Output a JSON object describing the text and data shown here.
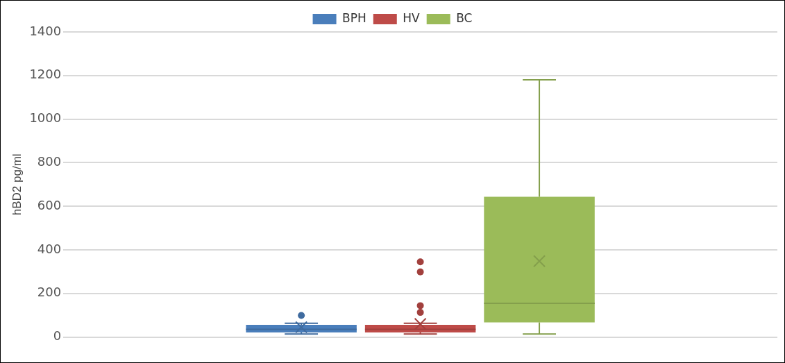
{
  "chart_data": {
    "type": "box",
    "ylabel": "hBD2 pg/ml",
    "categories": [
      null
    ],
    "ylim": [
      0,
      1400
    ],
    "yticks": [
      0,
      200,
      400,
      600,
      800,
      1000,
      1200,
      1400
    ],
    "grid": "y",
    "legend": "top",
    "series": [
      {
        "name": "BPH",
        "color": "#4a7ebb",
        "boxes": [
          {
            "low": 14,
            "q1": 21,
            "median": 35,
            "q3": 56,
            "high": 63,
            "mean": 45,
            "outliers": [
              99
            ]
          }
        ]
      },
      {
        "name": "HV",
        "color": "#be4b48",
        "boxes": [
          {
            "low": 14,
            "q1": 21,
            "median": 35,
            "q3": 56,
            "high": 63,
            "mean": 60,
            "outliers": [
              113,
              144,
              299,
              345
            ]
          }
        ]
      },
      {
        "name": "BC",
        "color": "#9bbb59",
        "boxes": [
          {
            "low": 14,
            "q1": 67,
            "median": 155,
            "q3": 644,
            "high": 1180,
            "mean": 348
          }
        ]
      }
    ]
  }
}
